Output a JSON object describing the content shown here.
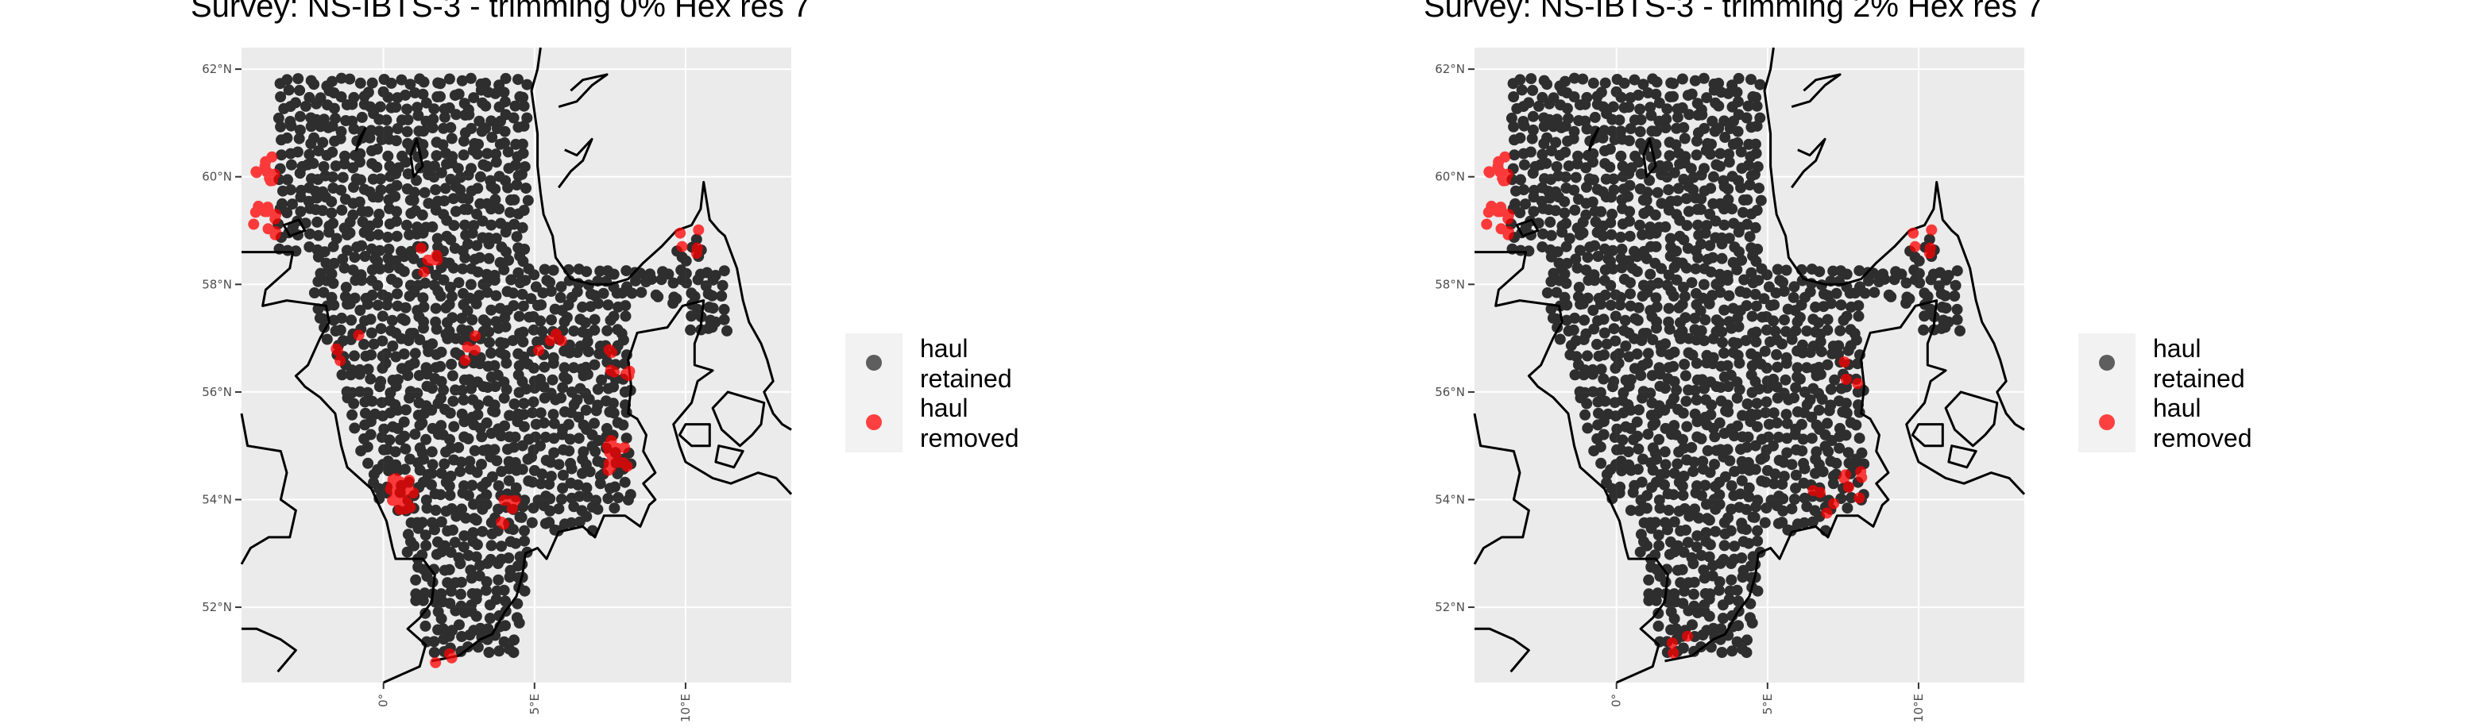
{
  "panels": [
    {
      "title": "Survey: NS-IBTS-3 - trimming 0% Hex res 7",
      "lat_labels": [
        "62°N",
        "60°N",
        "58°N",
        "56°N",
        "54°N",
        "52°N"
      ],
      "lon_labels": [
        "0°",
        "5°E",
        "10°E"
      ],
      "legend": {
        "retained": "haul retained",
        "removed": "haul removed"
      }
    },
    {
      "title": "Survey: NS-IBTS-3 - trimming 2% Hex res 7",
      "lat_labels": [
        "62°N",
        "60°N",
        "58°N",
        "56°N",
        "54°N",
        "52°N"
      ],
      "lon_labels": [
        "0°",
        "5°E",
        "10°E"
      ],
      "legend": {
        "retained": "haul retained",
        "removed": "haul removed"
      }
    }
  ],
  "colors": {
    "panel_background": "#ebebeb",
    "gridline": "#ffffff",
    "coastline": "#000000",
    "retained_point": "#000000",
    "removed_point": "#ff0000",
    "legend_key_background": "#f2f2f2"
  },
  "chart_data": [
    {
      "type": "scatter",
      "title": "Survey: NS-IBTS-3 - trimming 0% Hex res 7",
      "x_axis": "longitude",
      "y_axis": "latitude",
      "xlim": [
        -4.7,
        13.5
      ],
      "ylim": [
        50.6,
        62.4
      ],
      "grid": true,
      "legend_position": "right",
      "series": [
        {
          "name": "haul retained",
          "color": "#000000",
          "region_note": "dense grid of hauls across the North Sea and Skagerrak"
        },
        {
          "name": "haul removed",
          "color": "#ff0000",
          "clusters": [
            [
              -4.0,
              60.1
            ],
            [
              -3.9,
              59.0
            ],
            [
              10.1,
              58.8
            ],
            [
              0.6,
              54.1
            ],
            [
              7.8,
              54.8
            ],
            [
              7.8,
              56.5
            ],
            [
              2.1,
              51.2
            ]
          ]
        }
      ],
      "removed_share": "more"
    },
    {
      "type": "scatter",
      "title": "Survey: NS-IBTS-3 - trimming 2% Hex res 7",
      "x_axis": "longitude",
      "y_axis": "latitude",
      "xlim": [
        -4.7,
        13.5
      ],
      "ylim": [
        50.6,
        62.4
      ],
      "grid": true,
      "legend_position": "right",
      "series": [
        {
          "name": "haul retained",
          "color": "#000000",
          "region_note": "dense grid of hauls across the North Sea and Skagerrak"
        },
        {
          "name": "haul removed",
          "color": "#ff0000",
          "clusters": [
            [
              -4.0,
              60.1
            ],
            [
              -3.9,
              59.0
            ],
            [
              10.1,
              58.8
            ],
            [
              7.8,
              54.3
            ],
            [
              2.1,
              51.2
            ]
          ]
        }
      ],
      "removed_share": "fewer"
    }
  ]
}
